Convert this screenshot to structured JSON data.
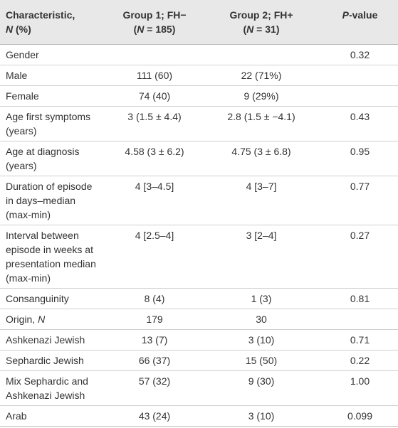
{
  "table": {
    "header": [
      [
        "Characteristic,",
        "N",
        " (%)"
      ],
      [
        "Group 1; FH−",
        "(",
        "N",
        " = 185)"
      ],
      [
        "Group 2; FH+",
        "(",
        "N",
        " = 31)"
      ],
      [
        "P",
        "-value"
      ]
    ],
    "rows": [
      {
        "label": "Gender",
        "p": "0.32"
      },
      {
        "label": "Male",
        "g1": "111 (60)",
        "g2": "22 (71%)"
      },
      {
        "label": "Female",
        "g1": "74 (40)",
        "g2": "9 (29%)"
      },
      {
        "label": "Age first symptoms (years)",
        "g1": "3 (1.5 ± 4.4)",
        "g2": "2.8 (1.5 ± −4.1)",
        "p": "0.43"
      },
      {
        "label": "Age at diagnosis (years)",
        "g1": "4.58 (3 ± 6.2)",
        "g2": "4.75 (3 ± 6.8)",
        "p": "0.95"
      },
      {
        "label": "Duration of episode in days–median (max-min)",
        "g1": "4 [3–4.5]",
        "g2": "4 [3–7]",
        "p": "0.77"
      },
      {
        "label": "Interval between episode in weeks at presentation median (max-min)",
        "g1": "4 [2.5–4]",
        "g2": "3 [2–4]",
        "p": "0.27"
      },
      {
        "label": "Consanguinity",
        "g1": "8 (4)",
        "g2": "1 (3)",
        "p": "0.81"
      },
      {
        "label": [
          "Origin, ",
          "N"
        ],
        "g1": "179",
        "g2": "30"
      },
      {
        "label": "Ashkenazi Jewish",
        "g1": "13 (7)",
        "g2": "3 (10)",
        "p": "0.71"
      },
      {
        "label": "Sephardic Jewish",
        "g1": "66 (37)",
        "g2": "15 (50)",
        "p": "0.22"
      },
      {
        "label": "Mix Sephardic and Ashkenazi Jewish",
        "g1": "57 (32)",
        "g2": "9 (30)",
        "p": "1.00"
      },
      {
        "label": "Arab",
        "g1": "43 (24)",
        "g2": "3 (10)",
        "p": "0.099"
      }
    ]
  }
}
